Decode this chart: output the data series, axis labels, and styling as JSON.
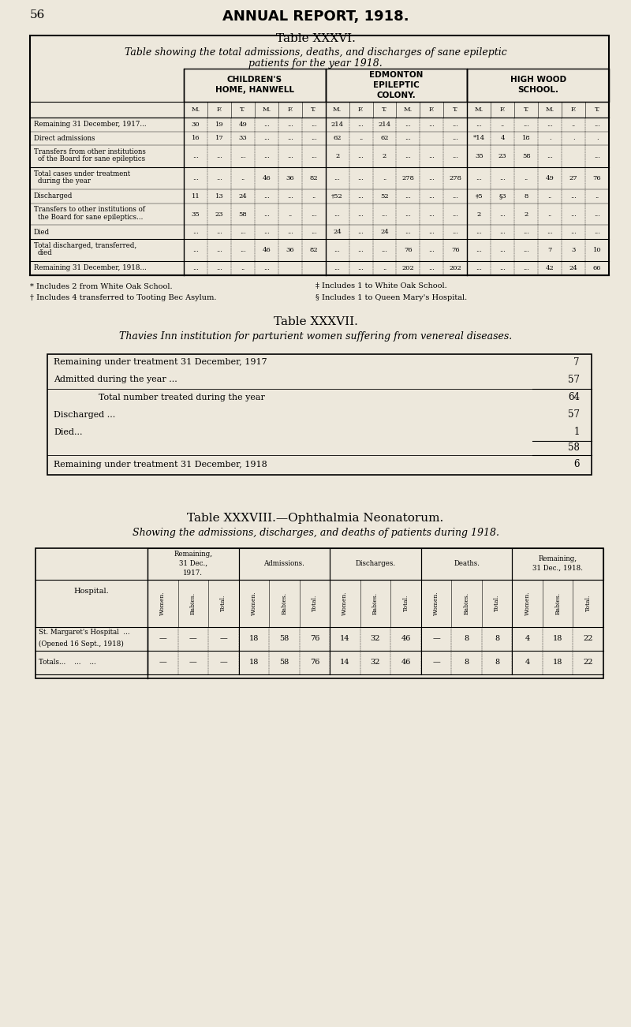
{
  "bg_color": "#ede8dc",
  "page_num": "56",
  "page_title": "ANNUAL REPORT, 1918.",
  "table1_title": "Table XXXVI.",
  "table1_subtitle": "Table showing the total admissions, deaths, and discharges of sane epileptic\npatients for the year 1918.",
  "table1_col_groups": [
    {
      "label": "CHILDREN'S\nHOME, HANWELL",
      "span": 6
    },
    {
      "label": "EDMONTON\nEPILEPTIC\nCOLONY.",
      "span": 6
    },
    {
      "label": "HIGH WOOD\nSCHOOL.",
      "span": 6
    }
  ],
  "table1_subheaders": [
    "M.",
    "F.",
    "T.",
    "M.",
    "F.",
    "T.",
    "M.",
    "F.",
    "T.",
    "M.",
    "F.",
    "T.",
    "M.",
    "F.",
    "T.",
    "M.",
    "F.",
    "T."
  ],
  "table1_rows": [
    {
      "label": "Remaining 31 December, 1917...",
      "vals": [
        "30",
        "19",
        "49",
        "...",
        "...",
        "...",
        "214",
        "...",
        "214",
        "...",
        "...",
        "...",
        "...",
        "..",
        "...",
        "...",
        "..",
        "..."
      ]
    },
    {
      "label": "Direct admissions",
      "vals": [
        "16",
        "17",
        "33",
        "...",
        "...",
        "...",
        "62",
        "..",
        "62",
        "...",
        "",
        "...",
        "*14",
        "4",
        "18",
        ".",
        ".",
        "."
      ]
    },
    {
      "label": "Transfers from other institutions\nof the Board for sane epileptics",
      "vals": [
        "...",
        "...",
        "...",
        "...",
        "...",
        "...",
        "2",
        "...",
        "2",
        "...",
        "...",
        "...",
        "35",
        "23",
        "58",
        "...",
        "",
        "..."
      ]
    },
    {
      "label": "Total cases under treatment\nduring the year",
      "vals": [
        "...",
        "...",
        "..",
        "46",
        "36",
        "82",
        "...",
        "...",
        "..",
        "278",
        "...",
        "278",
        "...",
        "...",
        "..",
        "49",
        "27",
        "76"
      ]
    },
    {
      "label": "Discharged",
      "vals": [
        "11",
        "13",
        "24",
        "...",
        "...",
        "..",
        "†52",
        "...",
        "52",
        "...",
        "...",
        "...",
        "‡5",
        "§3",
        "8",
        "..",
        "...",
        ".."
      ]
    },
    {
      "label": "Transfers to other institutions of\nthe Board for sane epileptics...",
      "vals": [
        "35",
        "23",
        "58",
        "...",
        "..",
        "...",
        "...",
        "...",
        "...",
        "...",
        "...",
        "...",
        "2",
        "...",
        "2",
        "..",
        "...",
        "..."
      ]
    },
    {
      "label": "Died",
      "vals": [
        "...",
        "...",
        "...",
        "...",
        "...",
        "...",
        "24",
        "...",
        "24",
        "...",
        "...",
        "...",
        "...",
        "...",
        "...",
        "...",
        "...",
        "..."
      ]
    },
    {
      "label": "Total discharged, transferred,\ndied",
      "vals": [
        "...",
        "...",
        "...",
        "46",
        "36",
        "82",
        "...",
        "...",
        "...",
        "76",
        "...",
        "76",
        "...",
        "...",
        "...",
        "7",
        "3",
        "10"
      ]
    },
    {
      "label": "Remaining 31 December, 1918...",
      "vals": [
        "...",
        "...",
        "..",
        "...",
        "",
        "",
        "...",
        "...",
        "..",
        "202",
        "...",
        "202",
        "...",
        "...",
        "...",
        "42",
        "24",
        "66"
      ]
    }
  ],
  "table1_notes": [
    "* Includes 2 from White Oak School.",
    "† Includes 4 transferred to Tooting Bec Asylum.",
    "‡ Includes 1 to White Oak School.",
    "§ Includes 1 to Queen Mary's Hospital."
  ],
  "table2_title": "Table XXXVII.",
  "table2_subtitle": "Thavies Inn institution for parturient women suffering from venereal diseases.",
  "table3_title": "Table XXXVIII.—Ophthalmia Neonatorum.",
  "table3_subtitle": "Showing the admissions, discharges, and deaths of patients during 1918.",
  "table3_col_groups": [
    {
      "label": "Remaining,\n31 Dec.,\n1917.",
      "span": 3
    },
    {
      "label": "Admissions.",
      "span": 3
    },
    {
      "label": "Discharges.",
      "span": 3
    },
    {
      "label": "Deaths.",
      "span": 3
    },
    {
      "label": "Remaining,\n31 Dec., 1918.",
      "span": 3
    }
  ],
  "table3_subheaders": [
    "Women.",
    "Babies.",
    "Total.",
    "Women.",
    "Babies.",
    "Total.",
    "Women.",
    "Babies.",
    "Total.",
    "Women.",
    "Babies.",
    "Total.",
    "Women.",
    "Babies.",
    "Total."
  ],
  "table3_rows": [
    {
      "label": "St. Margaret's Hospital  ...\n(Opened 16 Sept., 1918)",
      "vals": [
        "—",
        "—",
        "—",
        "18",
        "58",
        "76",
        "14",
        "32",
        "46",
        "—",
        "8",
        "8",
        "4",
        "18",
        "22"
      ]
    },
    {
      "label": "Totals...    ...    ...",
      "vals": [
        "—",
        "—",
        "—",
        "18",
        "58",
        "76",
        "14",
        "32",
        "46",
        "—",
        "8",
        "8",
        "4",
        "18",
        "22"
      ]
    }
  ]
}
